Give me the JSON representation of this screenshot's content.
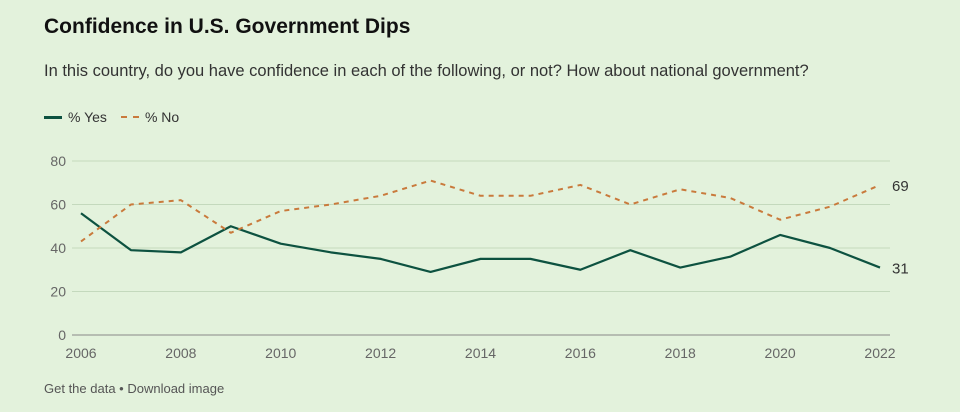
{
  "title": "Confidence in U.S. Government Dips",
  "subtitle": "In this country, do you have confidence in each of the following, or not? How about national government?",
  "footer": {
    "get_data": "Get the data",
    "separator": " • ",
    "download": "Download image"
  },
  "chart_data": {
    "type": "line",
    "x": [
      2006,
      2007,
      2008,
      2009,
      2010,
      2011,
      2012,
      2013,
      2014,
      2015,
      2016,
      2017,
      2018,
      2019,
      2020,
      2021,
      2022
    ],
    "xticks": [
      "2006",
      "2008",
      "2010",
      "2012",
      "2014",
      "2016",
      "2018",
      "2020",
      "2022"
    ],
    "yticks": [
      "0",
      "20",
      "40",
      "60",
      "80"
    ],
    "ylim": [
      0,
      80
    ],
    "xlim": [
      2006,
      2022
    ],
    "grid": true,
    "legend": "top-left",
    "series": [
      {
        "name": "% Yes",
        "color": "#0d5240",
        "dash": false,
        "end_label": "31",
        "values": [
          56,
          39,
          38,
          50,
          42,
          38,
          35,
          29,
          35,
          35,
          30,
          39,
          31,
          36,
          46,
          40,
          31
        ]
      },
      {
        "name": "% No",
        "color": "#c97a3c",
        "dash": true,
        "end_label": "69",
        "values": [
          43,
          60,
          62,
          47,
          57,
          60,
          64,
          71,
          64,
          64,
          69,
          60,
          67,
          63,
          53,
          59,
          69
        ]
      }
    ]
  }
}
